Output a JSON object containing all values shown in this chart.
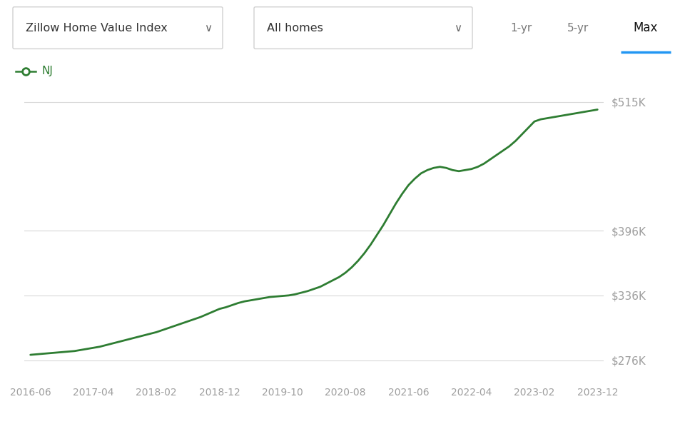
{
  "line_label": "NJ",
  "line_color": "#2e7d32",
  "background_color": "#ffffff",
  "plot_bg_color": "#ffffff",
  "grid_color": "#d8d8d8",
  "x_labels": [
    "2016-06",
    "2017-04",
    "2018-02",
    "2018-12",
    "2019-10",
    "2020-08",
    "2021-06",
    "2022-04",
    "2023-02",
    "2023-12"
  ],
  "y_ticks": [
    276000,
    336000,
    396000,
    515000
  ],
  "y_tick_labels": [
    "$276K",
    "$336K",
    "$396K",
    "$515K"
  ],
  "ylim": [
    258000,
    532000
  ],
  "data_x": [
    0,
    1,
    2,
    3,
    4,
    5,
    6,
    7,
    8,
    9,
    10,
    11,
    12,
    13,
    14,
    15,
    16,
    17,
    18,
    19,
    20,
    21,
    22,
    23,
    24,
    25,
    26,
    27,
    28,
    29,
    30,
    31,
    32,
    33,
    34,
    35,
    36,
    37,
    38,
    39,
    40,
    41,
    42,
    43,
    44,
    45,
    46,
    47,
    48,
    49,
    50,
    51,
    52,
    53,
    54,
    55,
    56,
    57,
    58,
    59,
    60,
    61,
    62,
    63,
    64,
    65,
    66,
    67,
    68,
    69,
    70,
    71,
    72,
    73,
    74,
    75,
    76,
    77,
    78,
    79,
    80,
    81,
    82,
    83,
    84,
    85,
    86,
    87,
    88,
    89,
    90
  ],
  "data_y": [
    281000,
    281500,
    282000,
    282500,
    283000,
    283500,
    284000,
    284500,
    285500,
    286500,
    287500,
    288500,
    290000,
    291500,
    293000,
    294500,
    296000,
    297500,
    299000,
    300500,
    302000,
    304000,
    306000,
    308000,
    310000,
    312000,
    314000,
    316000,
    318500,
    321000,
    323500,
    325000,
    327000,
    329000,
    330500,
    331500,
    332500,
    333500,
    334500,
    335000,
    335500,
    336000,
    337000,
    338500,
    340000,
    342000,
    344000,
    347000,
    350000,
    353000,
    357000,
    362000,
    368000,
    375000,
    383000,
    392000,
    401000,
    411000,
    421000,
    430000,
    438000,
    444000,
    449000,
    452000,
    454000,
    455000,
    454000,
    452000,
    451000,
    452000,
    453000,
    455000,
    458000,
    462000,
    466000,
    470000,
    474000,
    479000,
    485000,
    491000,
    497000,
    499000,
    500000,
    501000,
    502000,
    503000,
    504000,
    505000,
    506000,
    507000,
    508000
  ],
  "x_tick_positions": [
    0,
    10,
    20,
    30,
    40,
    50,
    60,
    70,
    80,
    90
  ],
  "header_border": "#d0d0d0",
  "dropdown1_text": "Zillow Home Value Index",
  "dropdown2_text": "All homes",
  "btn1_text": "1-yr",
  "btn2_text": "5-yr",
  "btn3_text": "Max",
  "btn3_underline_color": "#2196f3",
  "tick_label_color": "#9e9e9e"
}
